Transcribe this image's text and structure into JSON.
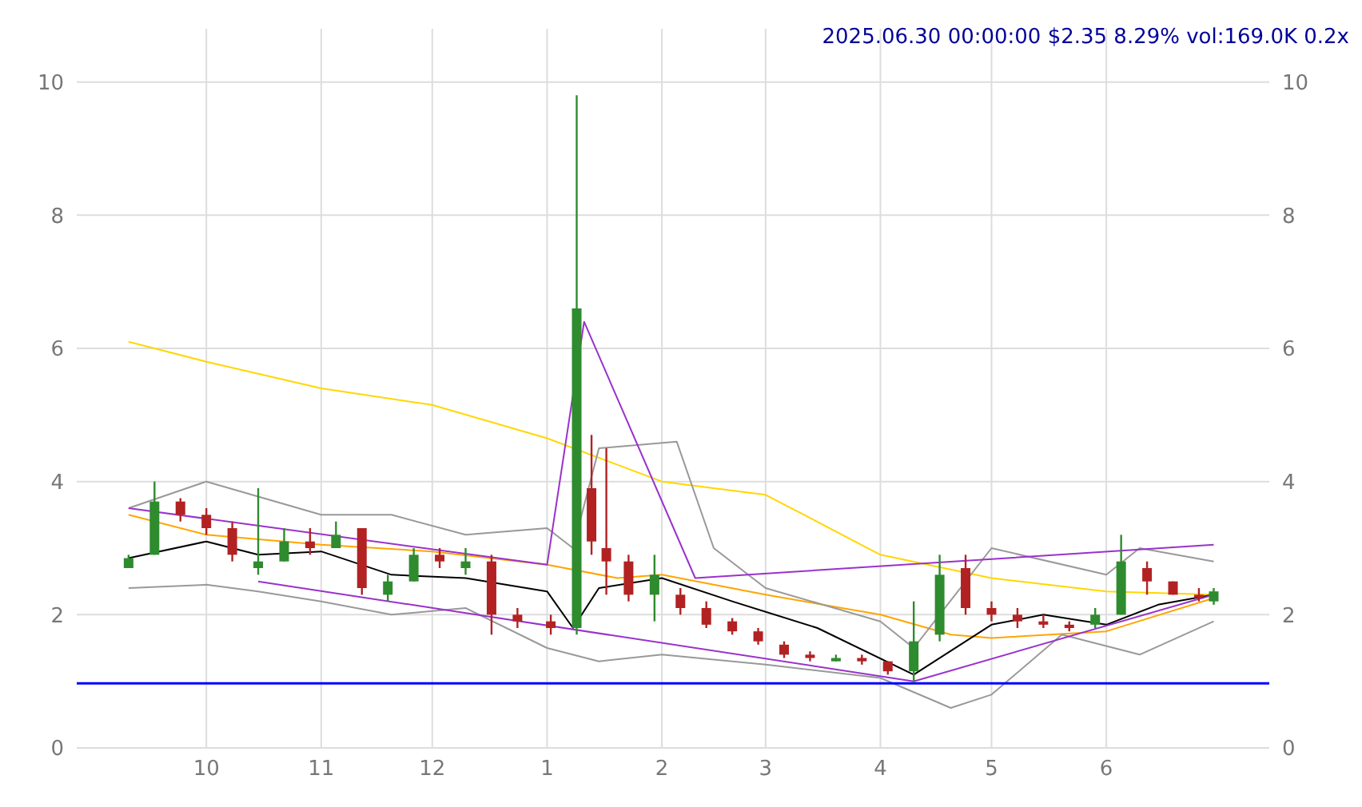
{
  "chart_data": {
    "type": "candlestick",
    "title": "2025.06.30 00:00:00 $2.35 8.29% vol:169.0K 0.2x",
    "x": [
      "2024-09-10",
      "2024-09-17",
      "2024-09-24",
      "2024-10-01",
      "2024-10-08",
      "2024-10-15",
      "2024-10-22",
      "2024-10-29",
      "2024-11-05",
      "2024-11-12",
      "2024-11-19",
      "2024-11-26",
      "2024-12-03",
      "2024-12-10",
      "2024-12-17",
      "2024-12-24",
      "2025-01-02",
      "2025-01-09",
      "2025-01-13",
      "2025-01-17",
      "2025-01-23",
      "2025-01-30",
      "2025-02-06",
      "2025-02-13",
      "2025-02-20",
      "2025-02-27",
      "2025-03-06",
      "2025-03-13",
      "2025-03-20",
      "2025-03-27",
      "2025-04-03",
      "2025-04-10",
      "2025-04-17",
      "2025-04-24",
      "2025-05-01",
      "2025-05-08",
      "2025-05-15",
      "2025-05-22",
      "2025-05-29",
      "2025-06-05",
      "2025-06-12",
      "2025-06-19",
      "2025-06-26",
      "2025-06-30"
    ],
    "ohlc": [
      [
        2.7,
        2.9,
        2.7,
        2.85
      ],
      [
        2.9,
        4.0,
        2.9,
        3.7
      ],
      [
        3.7,
        3.75,
        3.4,
        3.5
      ],
      [
        3.5,
        3.6,
        3.2,
        3.3
      ],
      [
        3.3,
        3.4,
        2.8,
        2.9
      ],
      [
        2.7,
        3.9,
        2.6,
        2.8
      ],
      [
        2.8,
        3.3,
        2.8,
        3.1
      ],
      [
        3.1,
        3.3,
        2.9,
        3.0
      ],
      [
        3.0,
        3.4,
        3.0,
        3.2
      ],
      [
        3.3,
        3.3,
        2.3,
        2.4
      ],
      [
        2.3,
        2.6,
        2.2,
        2.5
      ],
      [
        2.5,
        3.0,
        2.5,
        2.9
      ],
      [
        2.9,
        3.0,
        2.7,
        2.8
      ],
      [
        2.7,
        3.0,
        2.6,
        2.8
      ],
      [
        2.8,
        2.9,
        1.7,
        2.0
      ],
      [
        2.0,
        2.1,
        1.8,
        1.9
      ],
      [
        1.9,
        2.0,
        1.7,
        1.8
      ],
      [
        1.8,
        9.8,
        1.7,
        6.6
      ],
      [
        3.9,
        4.7,
        2.9,
        3.1
      ],
      [
        3.0,
        4.5,
        2.3,
        2.8
      ],
      [
        2.8,
        2.9,
        2.2,
        2.3
      ],
      [
        2.3,
        2.9,
        1.9,
        2.6
      ],
      [
        2.3,
        2.4,
        2.0,
        2.1
      ],
      [
        2.1,
        2.2,
        1.8,
        1.85
      ],
      [
        1.9,
        1.95,
        1.7,
        1.75
      ],
      [
        1.75,
        1.8,
        1.55,
        1.6
      ],
      [
        1.55,
        1.6,
        1.35,
        1.4
      ],
      [
        1.4,
        1.45,
        1.3,
        1.35
      ],
      [
        1.3,
        1.4,
        1.3,
        1.35
      ],
      [
        1.35,
        1.4,
        1.25,
        1.3
      ],
      [
        1.3,
        1.3,
        1.1,
        1.15
      ],
      [
        1.15,
        2.2,
        0.98,
        1.6
      ],
      [
        1.7,
        2.9,
        1.6,
        2.6
      ],
      [
        2.7,
        2.9,
        2.0,
        2.1
      ],
      [
        2.1,
        2.2,
        1.9,
        2.0
      ],
      [
        2.0,
        2.1,
        1.8,
        1.9
      ],
      [
        1.9,
        2.0,
        1.8,
        1.85
      ],
      [
        1.85,
        1.9,
        1.75,
        1.8
      ],
      [
        1.85,
        2.1,
        1.8,
        2.0
      ],
      [
        2.0,
        3.2,
        2.0,
        2.8
      ],
      [
        2.7,
        2.8,
        2.3,
        2.5
      ],
      [
        2.5,
        2.5,
        2.3,
        2.3
      ],
      [
        2.3,
        2.4,
        2.2,
        2.25
      ],
      [
        2.2,
        2.4,
        2.15,
        2.35
      ]
    ],
    "colors": [
      "#2e8b2e",
      "#2e8b2e",
      "#b22222",
      "#b22222",
      "#b22222",
      "#2e8b2e",
      "#2e8b2e",
      "#b22222",
      "#2e8b2e",
      "#b22222",
      "#2e8b2e",
      "#2e8b2e",
      "#b22222",
      "#2e8b2e",
      "#b22222",
      "#b22222",
      "#b22222",
      "#2e8b2e",
      "#b22222",
      "#b22222",
      "#b22222",
      "#2e8b2e",
      "#b22222",
      "#b22222",
      "#b22222",
      "#b22222",
      "#b22222",
      "#b22222",
      "#2e8b2e",
      "#b22222",
      "#b22222",
      "#2e8b2e",
      "#2e8b2e",
      "#b22222",
      "#b22222",
      "#b22222",
      "#b22222",
      "#b22222",
      "#2e8b2e",
      "#2e8b2e",
      "#b22222",
      "#b22222",
      "#b22222",
      "#2e8b2e"
    ],
    "series": [
      {
        "type": "line",
        "color": "#ffd700",
        "x": [
          "2024-09-10",
          "2024-10-01",
          "2024-11-01",
          "2024-12-01",
          "2025-01-01",
          "2025-02-01",
          "2025-03-01",
          "2025-04-01",
          "2025-05-01",
          "2025-06-01",
          "2025-06-30"
        ],
        "values": [
          6.1,
          5.8,
          5.4,
          5.15,
          4.65,
          4.0,
          3.8,
          2.9,
          2.55,
          2.35,
          2.3
        ]
      },
      {
        "type": "line",
        "color": "#ffa500",
        "x": [
          "2024-09-10",
          "2024-10-01",
          "2024-11-01",
          "2024-12-01",
          "2025-01-01",
          "2025-01-20",
          "2025-02-01",
          "2025-03-01",
          "2025-04-01",
          "2025-04-20",
          "2025-05-01",
          "2025-06-01",
          "2025-06-30"
        ],
        "values": [
          3.5,
          3.2,
          3.05,
          2.95,
          2.75,
          2.55,
          2.6,
          2.3,
          2.0,
          1.7,
          1.65,
          1.75,
          2.25
        ]
      },
      {
        "type": "line",
        "color": "#000000",
        "x": [
          "2024-09-10",
          "2024-10-01",
          "2024-10-15",
          "2024-11-01",
          "2024-11-20",
          "2024-12-10",
          "2025-01-01",
          "2025-01-08",
          "2025-01-15",
          "2025-02-01",
          "2025-02-20",
          "2025-03-15",
          "2025-04-10",
          "2025-05-01",
          "2025-05-15",
          "2025-06-01",
          "2025-06-15",
          "2025-06-30"
        ],
        "values": [
          2.85,
          3.1,
          2.9,
          2.95,
          2.6,
          2.55,
          2.35,
          1.8,
          2.4,
          2.55,
          2.2,
          1.8,
          1.1,
          1.85,
          2.0,
          1.85,
          2.15,
          2.3
        ]
      },
      {
        "type": "line",
        "color": "#999999",
        "x": [
          "2024-09-10",
          "2024-10-01",
          "2024-11-01",
          "2024-11-20",
          "2024-12-10",
          "2025-01-01",
          "2025-01-08",
          "2025-01-15",
          "2025-02-05",
          "2025-02-15",
          "2025-03-01",
          "2025-04-01",
          "2025-04-10",
          "2025-05-01",
          "2025-06-01",
          "2025-06-10",
          "2025-06-30"
        ],
        "values": [
          3.6,
          4.0,
          3.5,
          3.5,
          3.2,
          3.3,
          3.0,
          4.5,
          4.6,
          3.0,
          2.4,
          1.9,
          1.5,
          3.0,
          2.6,
          3.0,
          2.8
        ]
      },
      {
        "type": "line",
        "color": "#999999",
        "x": [
          "2024-09-10",
          "2024-10-01",
          "2024-10-15",
          "2024-11-01",
          "2024-11-20",
          "2024-12-10",
          "2025-01-01",
          "2025-01-15",
          "2025-02-01",
          "2025-03-01",
          "2025-04-01",
          "2025-04-20",
          "2025-05-01",
          "2025-05-20",
          "2025-06-10",
          "2025-06-30"
        ],
        "values": [
          2.4,
          2.45,
          2.35,
          2.2,
          2.0,
          2.1,
          1.5,
          1.3,
          1.4,
          1.25,
          1.05,
          0.6,
          0.8,
          1.7,
          1.4,
          1.9
        ]
      },
      {
        "type": "line",
        "color": "#9932cc",
        "x": [
          "2024-09-10",
          "2025-01-01",
          "2025-01-11",
          "2025-02-10",
          "2025-06-30"
        ],
        "values": [
          3.6,
          2.75,
          6.4,
          2.55,
          3.05
        ]
      },
      {
        "type": "line",
        "color": "#9932cc",
        "x": [
          "2024-10-15",
          "2025-04-10",
          "2025-06-30"
        ],
        "values": [
          2.5,
          1.0,
          2.3
        ]
      }
    ],
    "xlim": [
      "2024-08-27",
      "2025-07-15"
    ],
    "xticks": [
      {
        "value": "2024-10-01",
        "label": "10"
      },
      {
        "value": "2024-11-01",
        "label": "11"
      },
      {
        "value": "2024-12-01",
        "label": "12"
      },
      {
        "value": "2025-01-01",
        "label": "1"
      },
      {
        "value": "2025-02-01",
        "label": "2"
      },
      {
        "value": "2025-03-01",
        "label": "3"
      },
      {
        "value": "2025-04-01",
        "label": "4"
      },
      {
        "value": "2025-05-01",
        "label": "5"
      },
      {
        "value": "2025-06-01",
        "label": "6"
      }
    ],
    "ylim": [
      0,
      10.8
    ],
    "yticks": [
      0,
      2,
      4,
      6,
      8,
      10
    ],
    "y2lim": [
      0,
      10.8
    ],
    "y2ticks": [
      0,
      2,
      4,
      6,
      8,
      10
    ],
    "ref_lines": [
      {
        "axis": "y",
        "value": 0.97,
        "color": "#0000ff"
      }
    ],
    "grid": true
  }
}
